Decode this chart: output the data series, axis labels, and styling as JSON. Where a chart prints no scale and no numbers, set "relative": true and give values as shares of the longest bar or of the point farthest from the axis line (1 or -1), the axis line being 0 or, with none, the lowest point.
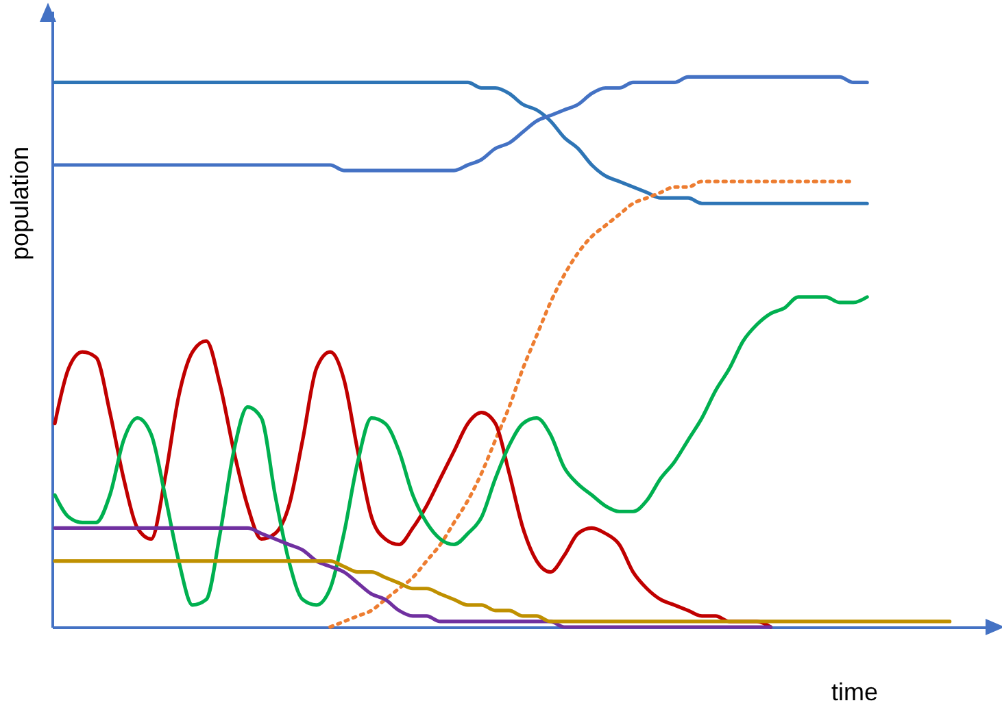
{
  "chart_data": {
    "type": "line",
    "relative": true,
    "xlabel": "time",
    "ylabel": "population",
    "tick_labels": false,
    "grid": false,
    "categories": [
      null,
      null,
      null,
      null,
      null,
      null,
      null,
      null,
      null,
      null,
      null,
      null,
      null,
      null,
      null,
      null,
      null,
      null,
      null,
      null,
      null,
      null,
      null,
      null,
      null,
      null,
      null,
      null,
      null,
      null,
      null,
      null,
      null,
      null,
      null,
      null,
      null,
      null,
      null,
      null,
      null,
      null,
      null,
      null,
      null,
      null,
      null,
      null,
      null,
      null,
      null,
      null,
      null,
      null,
      null,
      null,
      null,
      null,
      null,
      null,
      null,
      null,
      null,
      null,
      null,
      null
    ],
    "series": [
      {
        "color": "#2e75b6",
        "values": [
          0.99,
          0.99,
          0.99,
          0.99,
          0.99,
          0.99,
          0.99,
          0.99,
          0.99,
          0.99,
          0.99,
          0.99,
          0.99,
          0.99,
          0.99,
          0.99,
          0.99,
          0.99,
          0.99,
          0.99,
          0.99,
          0.99,
          0.99,
          0.99,
          0.99,
          0.99,
          0.99,
          0.99,
          0.99,
          0.99,
          0.99,
          0.98,
          0.98,
          0.97,
          0.95,
          0.94,
          0.92,
          0.89,
          0.87,
          0.84,
          0.82,
          0.81,
          0.8,
          0.79,
          0.78,
          0.78,
          0.78,
          0.77,
          0.77,
          0.77,
          0.77,
          0.77,
          0.77,
          0.77,
          0.77,
          0.77,
          0.77,
          0.77,
          0.77,
          0.77,
          null,
          null,
          null,
          null,
          null,
          null
        ]
      },
      {
        "color": "#4472c4",
        "values": [
          0.84,
          0.84,
          0.84,
          0.84,
          0.84,
          0.84,
          0.84,
          0.84,
          0.84,
          0.84,
          0.84,
          0.84,
          0.84,
          0.84,
          0.84,
          0.84,
          0.84,
          0.84,
          0.84,
          0.84,
          0.84,
          0.83,
          0.83,
          0.83,
          0.83,
          0.83,
          0.83,
          0.83,
          0.83,
          0.83,
          0.84,
          0.85,
          0.87,
          0.88,
          0.9,
          0.92,
          0.93,
          0.94,
          0.95,
          0.97,
          0.98,
          0.98,
          0.99,
          0.99,
          0.99,
          0.99,
          1,
          1,
          1,
          1,
          1,
          1,
          1,
          1,
          1,
          1,
          1,
          1,
          0.99,
          0.99,
          null,
          null,
          null,
          null,
          null,
          null
        ]
      },
      {
        "color": "#ed7d31",
        "line_style": "dotted",
        "values": [
          null,
          null,
          null,
          null,
          null,
          null,
          null,
          null,
          null,
          null,
          null,
          null,
          null,
          null,
          null,
          null,
          null,
          null,
          null,
          null,
          0,
          0.01,
          0.02,
          0.03,
          0.05,
          0.07,
          0.09,
          0.12,
          0.15,
          0.19,
          0.23,
          0.28,
          0.34,
          0.4,
          0.47,
          0.53,
          0.59,
          0.64,
          0.68,
          0.71,
          0.73,
          0.75,
          0.77,
          0.78,
          0.79,
          0.8,
          0.8,
          0.81,
          0.81,
          0.81,
          0.81,
          0.81,
          0.81,
          0.81,
          0.81,
          0.81,
          0.81,
          0.81,
          0.81,
          null,
          null,
          null,
          null,
          null,
          null,
          null
        ]
      },
      {
        "color": "#c00000",
        "values": [
          0.37,
          0.47,
          0.5,
          0.49,
          0.39,
          0.27,
          0.18,
          0.16,
          0.27,
          0.42,
          0.5,
          0.52,
          0.44,
          0.32,
          0.22,
          0.16,
          0.17,
          0.22,
          0.34,
          0.47,
          0.5,
          0.45,
          0.32,
          0.2,
          0.16,
          0.15,
          0.18,
          0.22,
          0.27,
          0.32,
          0.37,
          0.39,
          0.37,
          0.28,
          0.18,
          0.12,
          0.1,
          0.13,
          0.17,
          0.18,
          0.17,
          0.15,
          0.1,
          0.07,
          0.05,
          0.04,
          0.03,
          0.02,
          0.02,
          0.01,
          0.01,
          0.01,
          0,
          null,
          null,
          null,
          null,
          null,
          null,
          null,
          null,
          null,
          null,
          null,
          null,
          null
        ]
      },
      {
        "color": "#00b050",
        "values": [
          0.24,
          0.2,
          0.19,
          0.19,
          0.24,
          0.34,
          0.38,
          0.35,
          0.24,
          0.12,
          0.04,
          0.05,
          0.17,
          0.32,
          0.4,
          0.38,
          0.24,
          0.12,
          0.05,
          0.04,
          0.07,
          0.17,
          0.3,
          0.38,
          0.37,
          0.32,
          0.24,
          0.19,
          0.16,
          0.15,
          0.17,
          0.2,
          0.27,
          0.33,
          0.37,
          0.38,
          0.35,
          0.29,
          0.26,
          0.24,
          0.22,
          0.21,
          0.21,
          0.23,
          0.27,
          0.3,
          0.34,
          0.38,
          0.43,
          0.47,
          0.52,
          0.55,
          0.57,
          0.58,
          0.6,
          0.6,
          0.6,
          0.59,
          0.59,
          0.6,
          null,
          null,
          null,
          null,
          null,
          null
        ]
      },
      {
        "color": "#7030a0",
        "values": [
          0.18,
          0.18,
          0.18,
          0.18,
          0.18,
          0.18,
          0.18,
          0.18,
          0.18,
          0.18,
          0.18,
          0.18,
          0.18,
          0.18,
          0.18,
          0.17,
          0.16,
          0.15,
          0.14,
          0.12,
          0.11,
          0.1,
          0.08,
          0.06,
          0.05,
          0.03,
          0.02,
          0.02,
          0.01,
          0.01,
          0.01,
          0.01,
          0.01,
          0.01,
          0.01,
          0.01,
          0.01,
          0,
          0,
          0,
          0,
          0,
          0,
          0,
          0,
          0,
          0,
          0,
          0,
          0,
          0,
          0,
          0,
          null,
          null,
          null,
          null,
          null,
          null,
          null,
          null,
          null,
          null,
          null,
          null,
          null
        ]
      },
      {
        "color": "#bf9000",
        "values": [
          0.12,
          0.12,
          0.12,
          0.12,
          0.12,
          0.12,
          0.12,
          0.12,
          0.12,
          0.12,
          0.12,
          0.12,
          0.12,
          0.12,
          0.12,
          0.12,
          0.12,
          0.12,
          0.12,
          0.12,
          0.12,
          0.11,
          0.1,
          0.1,
          0.09,
          0.08,
          0.07,
          0.07,
          0.06,
          0.05,
          0.04,
          0.04,
          0.03,
          0.03,
          0.02,
          0.02,
          0.01,
          0.01,
          0.01,
          0.01,
          0.01,
          0.01,
          0.01,
          0.01,
          0.01,
          0.01,
          0.01,
          0.01,
          0.01,
          0.01,
          0.01,
          0.01,
          0.01,
          0.01,
          0.01,
          0.01,
          0.01,
          0.01,
          0.01,
          0.01,
          0.01,
          0.01,
          0.01,
          0.01,
          0.01,
          0.01
        ]
      }
    ]
  }
}
